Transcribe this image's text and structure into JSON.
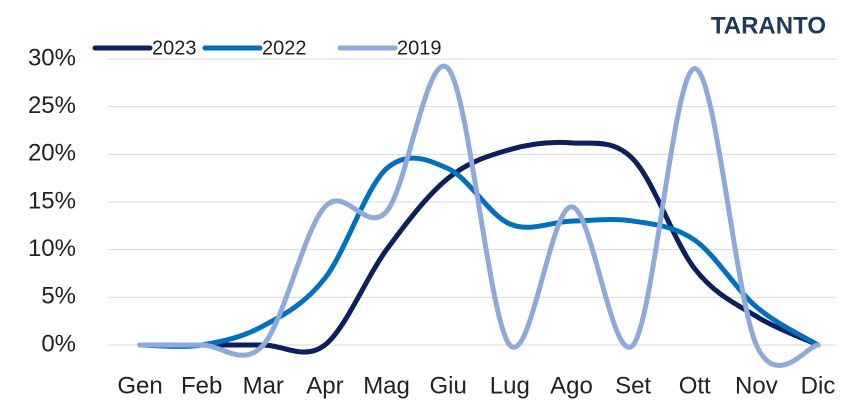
{
  "chart_data": {
    "type": "line",
    "title": "TARANTO",
    "categories": [
      "Gen",
      "Feb",
      "Mar",
      "Apr",
      "Mag",
      "Giu",
      "Lug",
      "Ago",
      "Set",
      "Ott",
      "Nov",
      "Dic"
    ],
    "series": [
      {
        "name": "2023",
        "color": "#0d1f5c",
        "values": [
          0,
          0,
          0,
          0,
          10,
          17.5,
          20.5,
          21.2,
          19.5,
          8,
          3,
          0
        ]
      },
      {
        "name": "2022",
        "color": "#0070c0",
        "values": [
          0,
          0,
          2,
          7,
          18.5,
          18.5,
          12.7,
          13,
          13,
          11,
          4,
          0
        ]
      },
      {
        "name": "2019",
        "color": "#8ea9db",
        "values": [
          0,
          0,
          0,
          14.5,
          14,
          29,
          0,
          14.5,
          0,
          29,
          0,
          0
        ]
      }
    ],
    "ylim": [
      0,
      30
    ],
    "yticks": [
      {
        "value": 0,
        "label": "0%"
      },
      {
        "value": 5,
        "label": "5%"
      },
      {
        "value": 10,
        "label": "10%"
      },
      {
        "value": 15,
        "label": "15%"
      },
      {
        "value": 20,
        "label": "20%"
      },
      {
        "value": 25,
        "label": "25%"
      },
      {
        "value": 30,
        "label": "30%"
      }
    ],
    "grid": true,
    "legend": "top-left"
  }
}
